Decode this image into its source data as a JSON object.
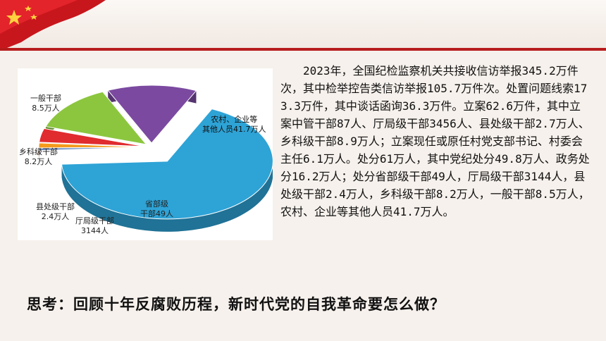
{
  "slide": {
    "paragraph": "2023年，全国纪检监察机关共接收信访举报345.2万件次，其中检举控告类信访举报105.7万件次。处置问题线索173.3万件，其中谈话函询36.3万件。立案62.6万件，其中立案中管干部87人、厅局级干部3456人、县处级干部2.7万人、乡科级干部8.9万人；立案现任或原任村党支部书记、村委会主任6.1万人。处分61万人，其中党纪处分49.8万人、政务处分16.2万人；处分省部级干部49人，厅局级干部3144人，县处级干部2.4万人，乡科级干部8.2万人，一般干部8.5万人，农村、企业等其他人员41.7万人。",
    "question": "思考：回顾十年反腐败历程，新时代党的自我革命要怎么做？"
  },
  "chart_data": {
    "type": "pie",
    "unit": "万人",
    "categories": [
      "农村、企业等其他人员",
      "省部级干部",
      "厅局级干部",
      "县处级干部",
      "乡科级干部",
      "一般干部"
    ],
    "values": [
      41.7,
      0.0049,
      0.3144,
      2.4,
      8.2,
      8.5
    ],
    "colors": [
      "#2ea3d6",
      "#3f6fb5",
      "#f39a1d",
      "#e02b2f",
      "#8cc63f",
      "#7b4aa0"
    ],
    "labels": [
      {
        "line1": "农村、企业等",
        "line2": "其他人员41.7万人"
      },
      {
        "line1": "省部级",
        "line2": "干部49人"
      },
      {
        "line1": "厅局级干部",
        "line2": "3144人"
      },
      {
        "line1": "县处级干部",
        "line2": "2.4万人"
      },
      {
        "line1": "乡科级干部",
        "line2": "8.2万人"
      },
      {
        "line1": "一般干部",
        "line2": "8.5万人"
      }
    ]
  }
}
